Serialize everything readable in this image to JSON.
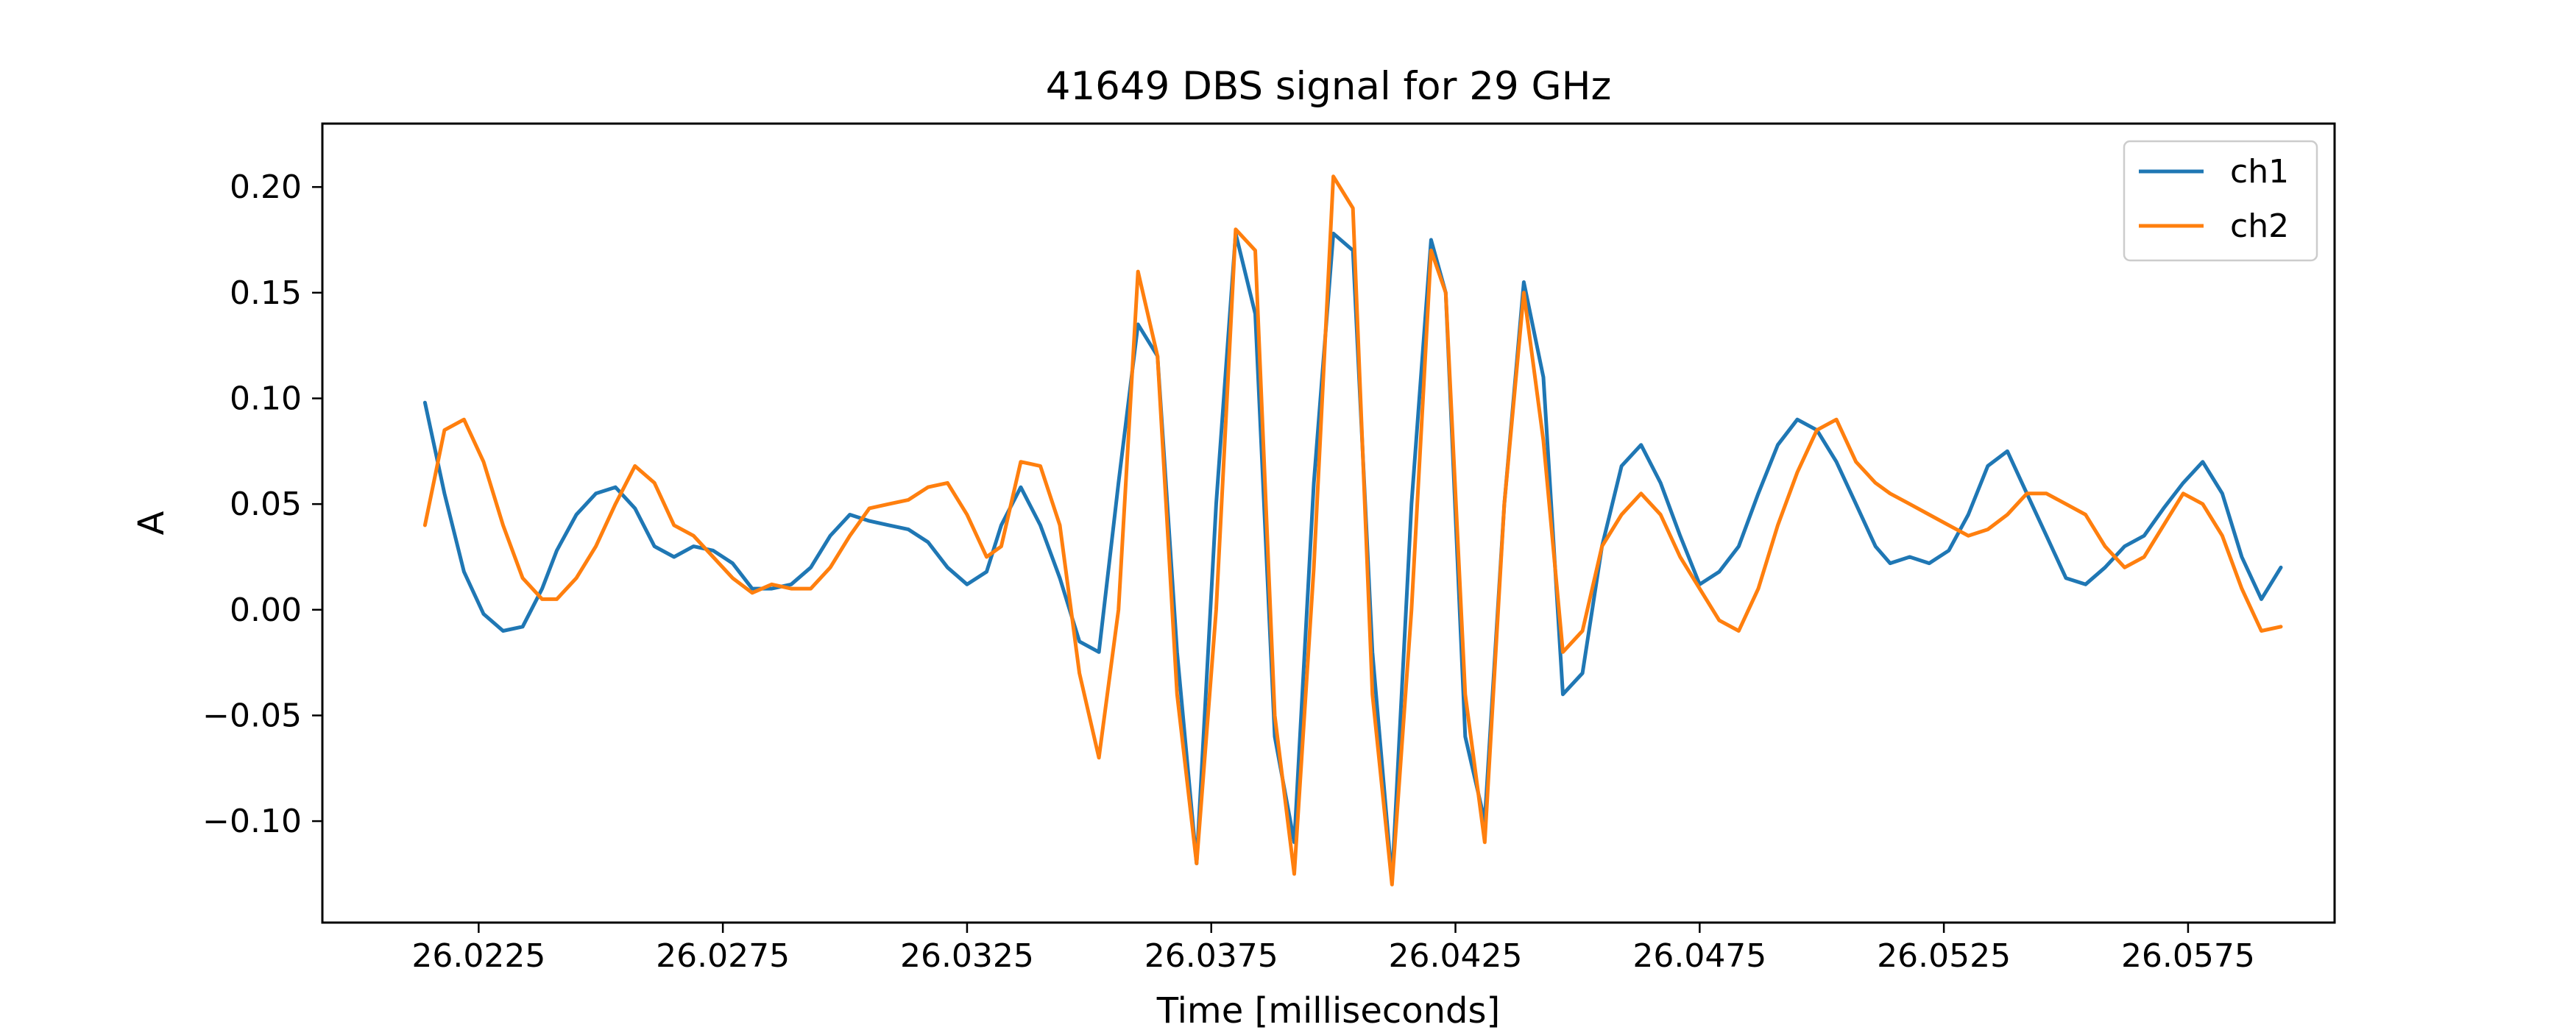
{
  "chart_data": {
    "type": "line",
    "title": "41649 DBS signal for 29 GHz",
    "xlabel": "Time [milliseconds]",
    "ylabel": "A",
    "xlim": [
      26.0193,
      26.0605
    ],
    "ylim": [
      -0.148,
      0.23
    ],
    "xticks": [
      26.0225,
      26.0275,
      26.0325,
      26.0375,
      26.0425,
      26.0475,
      26.0525,
      26.0575
    ],
    "xtick_labels": [
      "26.0225",
      "26.0275",
      "26.0325",
      "26.0375",
      "26.0425",
      "26.0475",
      "26.0525",
      "26.0575"
    ],
    "yticks": [
      -0.1,
      -0.05,
      0.0,
      0.05,
      0.1,
      0.15,
      0.2
    ],
    "ytick_labels": [
      "−0.10",
      "−0.05",
      "0.00",
      "0.05",
      "0.10",
      "0.15",
      "0.20"
    ],
    "grid": false,
    "legend_position": "top-right",
    "series": [
      {
        "name": "ch1",
        "color": "#1f77b4",
        "x": [
          26.0214,
          26.0218,
          26.0222,
          26.0226,
          26.023,
          26.0234,
          26.0238,
          26.0241,
          26.0245,
          26.0249,
          26.0253,
          26.0257,
          26.0261,
          26.0265,
          26.0269,
          26.0273,
          26.0277,
          26.0281,
          26.0285,
          26.0289,
          26.0293,
          26.0297,
          26.0301,
          26.0305,
          26.0309,
          26.0313,
          26.0317,
          26.0321,
          26.0325,
          26.0329,
          26.0332,
          26.0336,
          26.034,
          26.0344,
          26.0348,
          26.0352,
          26.0356,
          26.036,
          26.0364,
          26.0368,
          26.0372,
          26.0376,
          26.038,
          26.0384,
          26.0388,
          26.0392,
          26.0396,
          26.04,
          26.0404,
          26.0408,
          26.0412,
          26.0416,
          26.042,
          26.0423,
          26.0427,
          26.0431,
          26.0435,
          26.0439,
          26.0443,
          26.0447,
          26.0451,
          26.0455,
          26.0459,
          26.0463,
          26.0467,
          26.0471,
          26.0475,
          26.0479,
          26.0483,
          26.0487,
          26.0491,
          26.0495,
          26.0499,
          26.0503,
          26.0507,
          26.0511,
          26.0514,
          26.0518,
          26.0522,
          26.0526,
          26.053,
          26.0534,
          26.0538,
          26.0542,
          26.0546,
          26.055,
          26.0554,
          26.0558,
          26.0562,
          26.0566,
          26.057,
          26.0574,
          26.0578,
          26.0582,
          26.0586,
          26.059,
          26.0594
        ],
        "y": [
          0.098,
          0.055,
          0.018,
          -0.002,
          -0.01,
          -0.008,
          0.01,
          0.028,
          0.045,
          0.055,
          0.058,
          0.048,
          0.03,
          0.025,
          0.03,
          0.028,
          0.022,
          0.01,
          0.01,
          0.012,
          0.02,
          0.035,
          0.045,
          0.042,
          0.04,
          0.038,
          0.032,
          0.02,
          0.012,
          0.018,
          0.04,
          0.058,
          0.04,
          0.015,
          -0.015,
          -0.02,
          0.06,
          0.135,
          0.12,
          -0.02,
          -0.12,
          0.05,
          0.178,
          0.14,
          -0.06,
          -0.11,
          0.06,
          0.178,
          0.17,
          -0.02,
          -0.128,
          0.05,
          0.175,
          0.15,
          -0.06,
          -0.1,
          0.05,
          0.155,
          0.11,
          -0.04,
          -0.03,
          0.03,
          0.068,
          0.078,
          0.06,
          0.035,
          0.012,
          0.018,
          0.03,
          0.055,
          0.078,
          0.09,
          0.085,
          0.07,
          0.05,
          0.03,
          0.022,
          0.025,
          0.022,
          0.028,
          0.045,
          0.068,
          0.075,
          0.055,
          0.035,
          0.015,
          0.012,
          0.02,
          0.03,
          0.035,
          0.048,
          0.06,
          0.07,
          0.055,
          0.025,
          0.005,
          0.02
        ]
      },
      {
        "name": "ch2",
        "color": "#ff7f0e",
        "x": [
          26.0214,
          26.0218,
          26.0222,
          26.0226,
          26.023,
          26.0234,
          26.0238,
          26.0241,
          26.0245,
          26.0249,
          26.0253,
          26.0257,
          26.0261,
          26.0265,
          26.0269,
          26.0273,
          26.0277,
          26.0281,
          26.0285,
          26.0289,
          26.0293,
          26.0297,
          26.0301,
          26.0305,
          26.0309,
          26.0313,
          26.0317,
          26.0321,
          26.0325,
          26.0329,
          26.0332,
          26.0336,
          26.034,
          26.0344,
          26.0348,
          26.0352,
          26.0356,
          26.036,
          26.0364,
          26.0368,
          26.0372,
          26.0376,
          26.038,
          26.0384,
          26.0388,
          26.0392,
          26.0396,
          26.04,
          26.0404,
          26.0408,
          26.0412,
          26.0416,
          26.042,
          26.0423,
          26.0427,
          26.0431,
          26.0435,
          26.0439,
          26.0443,
          26.0447,
          26.0451,
          26.0455,
          26.0459,
          26.0463,
          26.0467,
          26.0471,
          26.0475,
          26.0479,
          26.0483,
          26.0487,
          26.0491,
          26.0495,
          26.0499,
          26.0503,
          26.0507,
          26.0511,
          26.0514,
          26.0518,
          26.0522,
          26.0526,
          26.053,
          26.0534,
          26.0538,
          26.0542,
          26.0546,
          26.055,
          26.0554,
          26.0558,
          26.0562,
          26.0566,
          26.057,
          26.0574,
          26.0578,
          26.0582,
          26.0586,
          26.059,
          26.0594
        ],
        "y": [
          0.04,
          0.085,
          0.09,
          0.07,
          0.04,
          0.015,
          0.005,
          0.005,
          0.015,
          0.03,
          0.05,
          0.068,
          0.06,
          0.04,
          0.035,
          0.025,
          0.015,
          0.008,
          0.012,
          0.01,
          0.01,
          0.02,
          0.035,
          0.048,
          0.05,
          0.052,
          0.058,
          0.06,
          0.045,
          0.025,
          0.03,
          0.07,
          0.068,
          0.04,
          -0.03,
          -0.07,
          0.0,
          0.16,
          0.12,
          -0.04,
          -0.12,
          0.0,
          0.18,
          0.17,
          -0.05,
          -0.125,
          0.02,
          0.205,
          0.19,
          -0.04,
          -0.13,
          0.0,
          0.17,
          0.15,
          -0.04,
          -0.11,
          0.05,
          0.15,
          0.08,
          -0.02,
          -0.01,
          0.03,
          0.045,
          0.055,
          0.045,
          0.025,
          0.01,
          -0.005,
          -0.01,
          0.01,
          0.04,
          0.065,
          0.085,
          0.09,
          0.07,
          0.06,
          0.055,
          0.05,
          0.045,
          0.04,
          0.035,
          0.038,
          0.045,
          0.055,
          0.055,
          0.05,
          0.045,
          0.03,
          0.02,
          0.025,
          0.04,
          0.055,
          0.05,
          0.035,
          0.01,
          -0.01,
          -0.008
        ]
      }
    ]
  }
}
